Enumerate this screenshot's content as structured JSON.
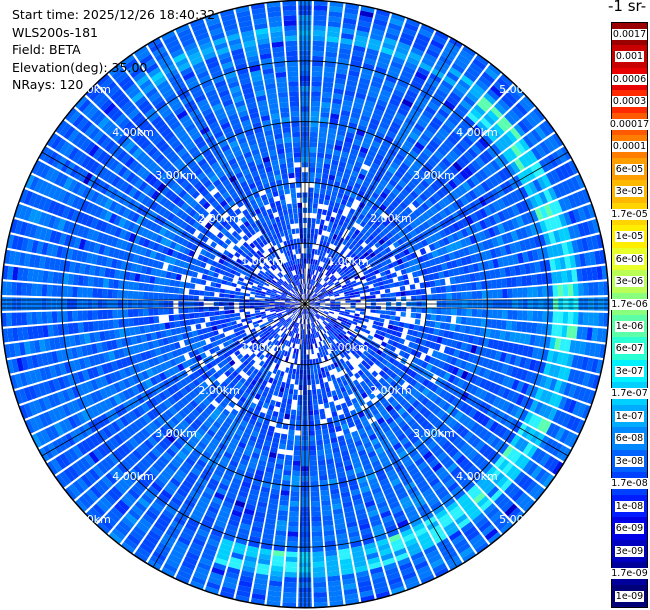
{
  "info": {
    "start_time": "Start time: 2025/12/26 18:40:32",
    "device": "WLS200s-181",
    "field": "Field: BETA",
    "elevation": "Elevation(deg): 35.00",
    "nrays": "NRays: 120"
  },
  "colorbar": {
    "unit_label": "-1 sr-",
    "labels": [
      "0.0017",
      "0.001",
      "0.0006",
      "0.0003",
      "0.00017",
      "0.0001",
      "6e-05",
      "3e-05",
      "1.7e-05",
      "1e-05",
      "6e-06",
      "3e-06",
      "1.7e-06",
      "1e-06",
      "6e-07",
      "3e-07",
      "1.7e-07",
      "1e-07",
      "6e-08",
      "3e-08",
      "1.7e-08",
      "1e-08",
      "6e-09",
      "3e-09",
      "1.7e-09",
      "1e-09"
    ],
    "colors": [
      "#9b0000",
      "#c80000",
      "#e80000",
      "#ff2a00",
      "#ff5a00",
      "#ff7d00",
      "#ff9e00",
      "#ffb800",
      "#ffd400",
      "#ffee00",
      "#e8ff2a",
      "#baff55",
      "#8aff7d",
      "#5cffa8",
      "#2affd4",
      "#00f2ff",
      "#00d0ff",
      "#00acff",
      "#0088ff",
      "#0063ff",
      "#0040ff",
      "#001cff",
      "#0000e6",
      "#0000c0",
      "#00009a",
      "#000078"
    ]
  },
  "chart_data": {
    "type": "heatmap",
    "projection": "polar-ppi",
    "field": "BETA",
    "elevation_deg": 35.0,
    "n_rays": 120,
    "range_max_km": 5.0,
    "range_ring_labels": [
      "1.00km",
      "2.00km",
      "3.00km",
      "4.00km",
      "5.00km"
    ],
    "ring_label_angles_deg": [
      45,
      135,
      225,
      315
    ],
    "dominant_value_range": [
      1e-09,
      1e-07
    ],
    "enhanced_ring": {
      "range_km": [
        4.1,
        4.5
      ],
      "sector_deg": [
        40,
        200
      ],
      "value_approx": 1e-07
    }
  }
}
